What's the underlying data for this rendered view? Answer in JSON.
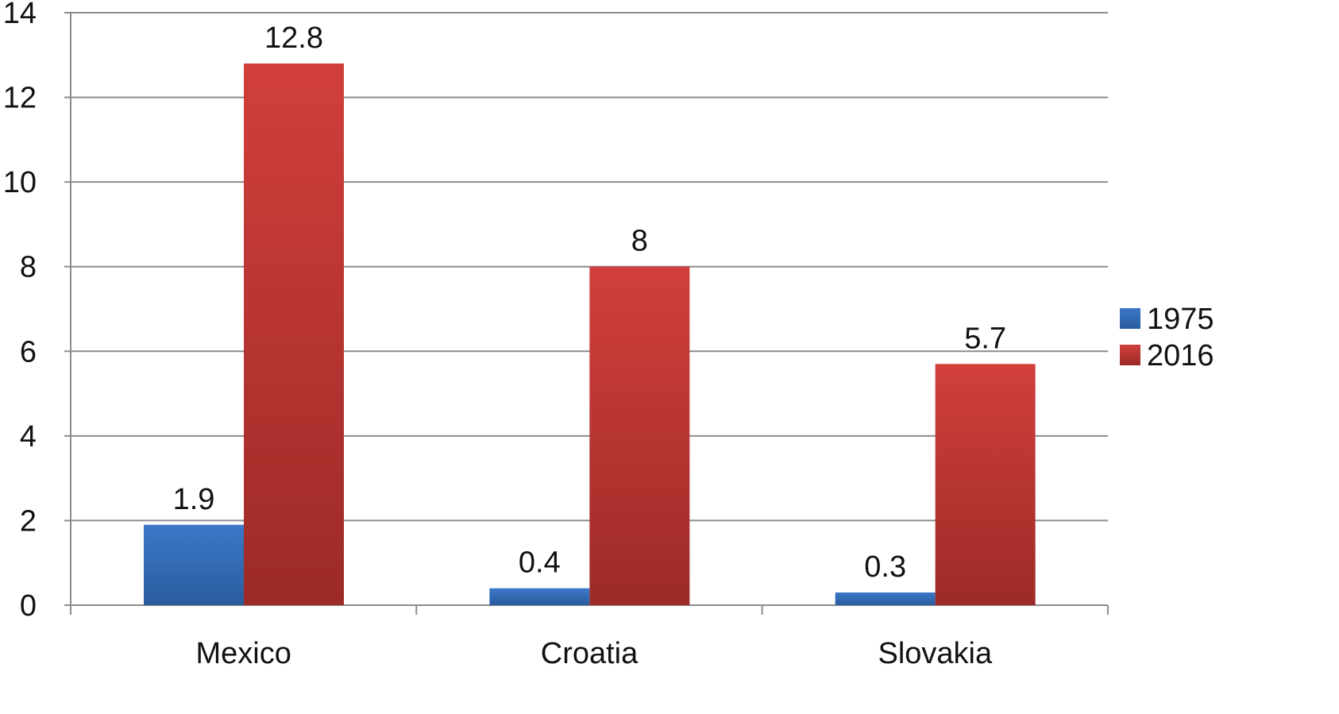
{
  "chart_data": {
    "type": "bar",
    "title": "",
    "xlabel": "",
    "ylabel": "",
    "categories": [
      "Mexico",
      "Croatia",
      "Slovakia"
    ],
    "series": [
      {
        "name": "1975",
        "values": [
          1.9,
          0.4,
          0.3
        ],
        "color": "#3B78C8",
        "color_dark": "#2A5C9E"
      },
      {
        "name": "2016",
        "values": [
          12.8,
          8,
          5.7
        ],
        "color": "#D13F3C",
        "color_dark": "#9C2A27"
      }
    ],
    "ylim": [
      0,
      14
    ],
    "yticks": [
      0,
      2,
      4,
      6,
      8,
      10,
      12,
      14
    ],
    "grid": true,
    "gridline_color": "#8C8C8C",
    "legend_position": "right",
    "data_labels": true
  }
}
